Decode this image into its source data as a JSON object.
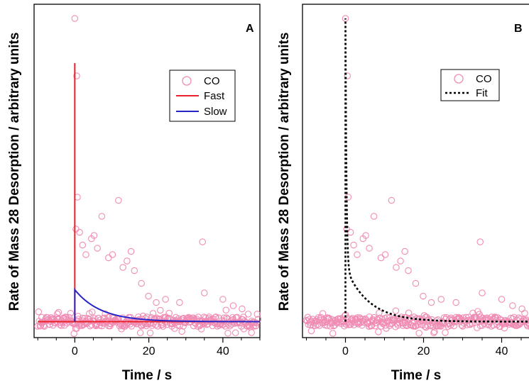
{
  "chart_data": [
    {
      "type": "scatter",
      "panel_label": "A",
      "xlabel": "Time / s",
      "ylabel": "Rate of Mass 28 Desorption / arbitrary units",
      "xlim": [
        -11,
        50
      ],
      "ylim": [
        0,
        1.0
      ],
      "x_ticks": [
        0,
        20,
        40
      ],
      "y_ticks": [],
      "legend_position": "top-right",
      "grid": false,
      "series": [
        {
          "name": "CO",
          "kind": "points",
          "color": "#f08cb4",
          "baseline": 0.05,
          "noise_amplitude": 0.015,
          "x_range": [
            -10,
            49.5
          ],
          "n_baseline_points": 330,
          "points": [
            [
              0,
              1.0
            ],
            [
              0.5,
              0.82
            ],
            [
              0.7,
              0.44
            ],
            [
              0.3,
              0.34
            ],
            [
              1.3,
              0.33
            ],
            [
              2.1,
              0.29
            ],
            [
              3.0,
              0.26
            ],
            [
              4.5,
              0.31
            ],
            [
              5.2,
              0.32
            ],
            [
              6.1,
              0.28
            ],
            [
              7.3,
              0.38
            ],
            [
              9.1,
              0.25
            ],
            [
              10.2,
              0.26
            ],
            [
              11.8,
              0.43
            ],
            [
              13.0,
              0.22
            ],
            [
              14.1,
              0.24
            ],
            [
              15.2,
              0.27
            ],
            [
              16.1,
              0.21
            ],
            [
              18.0,
              0.17
            ],
            [
              19.9,
              0.13
            ],
            [
              22.0,
              0.11
            ],
            [
              24.5,
              0.12
            ],
            [
              28.3,
              0.11
            ],
            [
              34.5,
              0.3
            ],
            [
              35.0,
              0.14
            ],
            [
              40.0,
              0.12
            ],
            [
              42.8,
              0.1
            ],
            [
              45.2,
              0.09
            ]
          ]
        },
        {
          "name": "Fast",
          "kind": "line",
          "color": "#e8202a",
          "peak": 0.86,
          "peak_x": 0,
          "baseline": 0.05,
          "decay_tau": 0.05,
          "x_range": [
            -10,
            50
          ]
        },
        {
          "name": "Slow",
          "kind": "line",
          "color": "#2626c8",
          "peak": 0.15,
          "peak_x": 0,
          "baseline": 0.05,
          "decay_tau": 7.0,
          "x_range": [
            0,
            50
          ]
        }
      ]
    },
    {
      "type": "scatter",
      "panel_label": "B",
      "xlabel": "Time / s",
      "ylabel": "Rate of Mass 28 Desorption / arbitrary units",
      "xlim": [
        -11,
        49
      ],
      "ylim": [
        0,
        1.0
      ],
      "x_ticks": [
        0,
        20,
        40
      ],
      "y_ticks": [],
      "legend_position": "top-right",
      "grid": false,
      "series": [
        {
          "name": "CO",
          "kind": "points",
          "color": "#f08cb4",
          "baseline": 0.05,
          "noise_amplitude": 0.015,
          "x_range": [
            -10,
            49
          ],
          "n_baseline_points": 330,
          "points": [
            [
              0,
              1.0
            ],
            [
              0.5,
              0.82
            ],
            [
              0.7,
              0.44
            ],
            [
              0.3,
              0.34
            ],
            [
              1.3,
              0.33
            ],
            [
              2.1,
              0.29
            ],
            [
              3.0,
              0.26
            ],
            [
              4.5,
              0.31
            ],
            [
              5.2,
              0.32
            ],
            [
              6.1,
              0.28
            ],
            [
              7.3,
              0.38
            ],
            [
              9.1,
              0.25
            ],
            [
              10.2,
              0.26
            ],
            [
              11.8,
              0.43
            ],
            [
              13.0,
              0.22
            ],
            [
              14.1,
              0.24
            ],
            [
              15.2,
              0.27
            ],
            [
              16.1,
              0.21
            ],
            [
              18.0,
              0.17
            ],
            [
              19.9,
              0.13
            ],
            [
              22.0,
              0.11
            ],
            [
              24.5,
              0.12
            ],
            [
              28.3,
              0.11
            ],
            [
              34.5,
              0.3
            ],
            [
              35.0,
              0.14
            ],
            [
              40.0,
              0.12
            ],
            [
              42.8,
              0.1
            ],
            [
              45.2,
              0.09
            ]
          ]
        },
        {
          "name": "Fit",
          "kind": "dotted-line",
          "color": "#000000",
          "peak": 1.0,
          "peak_x": 0,
          "baseline": 0.05,
          "fast_amplitude": 0.78,
          "fast_tau": 0.25,
          "slow_amplitude": 0.17,
          "slow_tau": 6.0,
          "x_range": [
            0,
            49
          ]
        }
      ]
    }
  ]
}
